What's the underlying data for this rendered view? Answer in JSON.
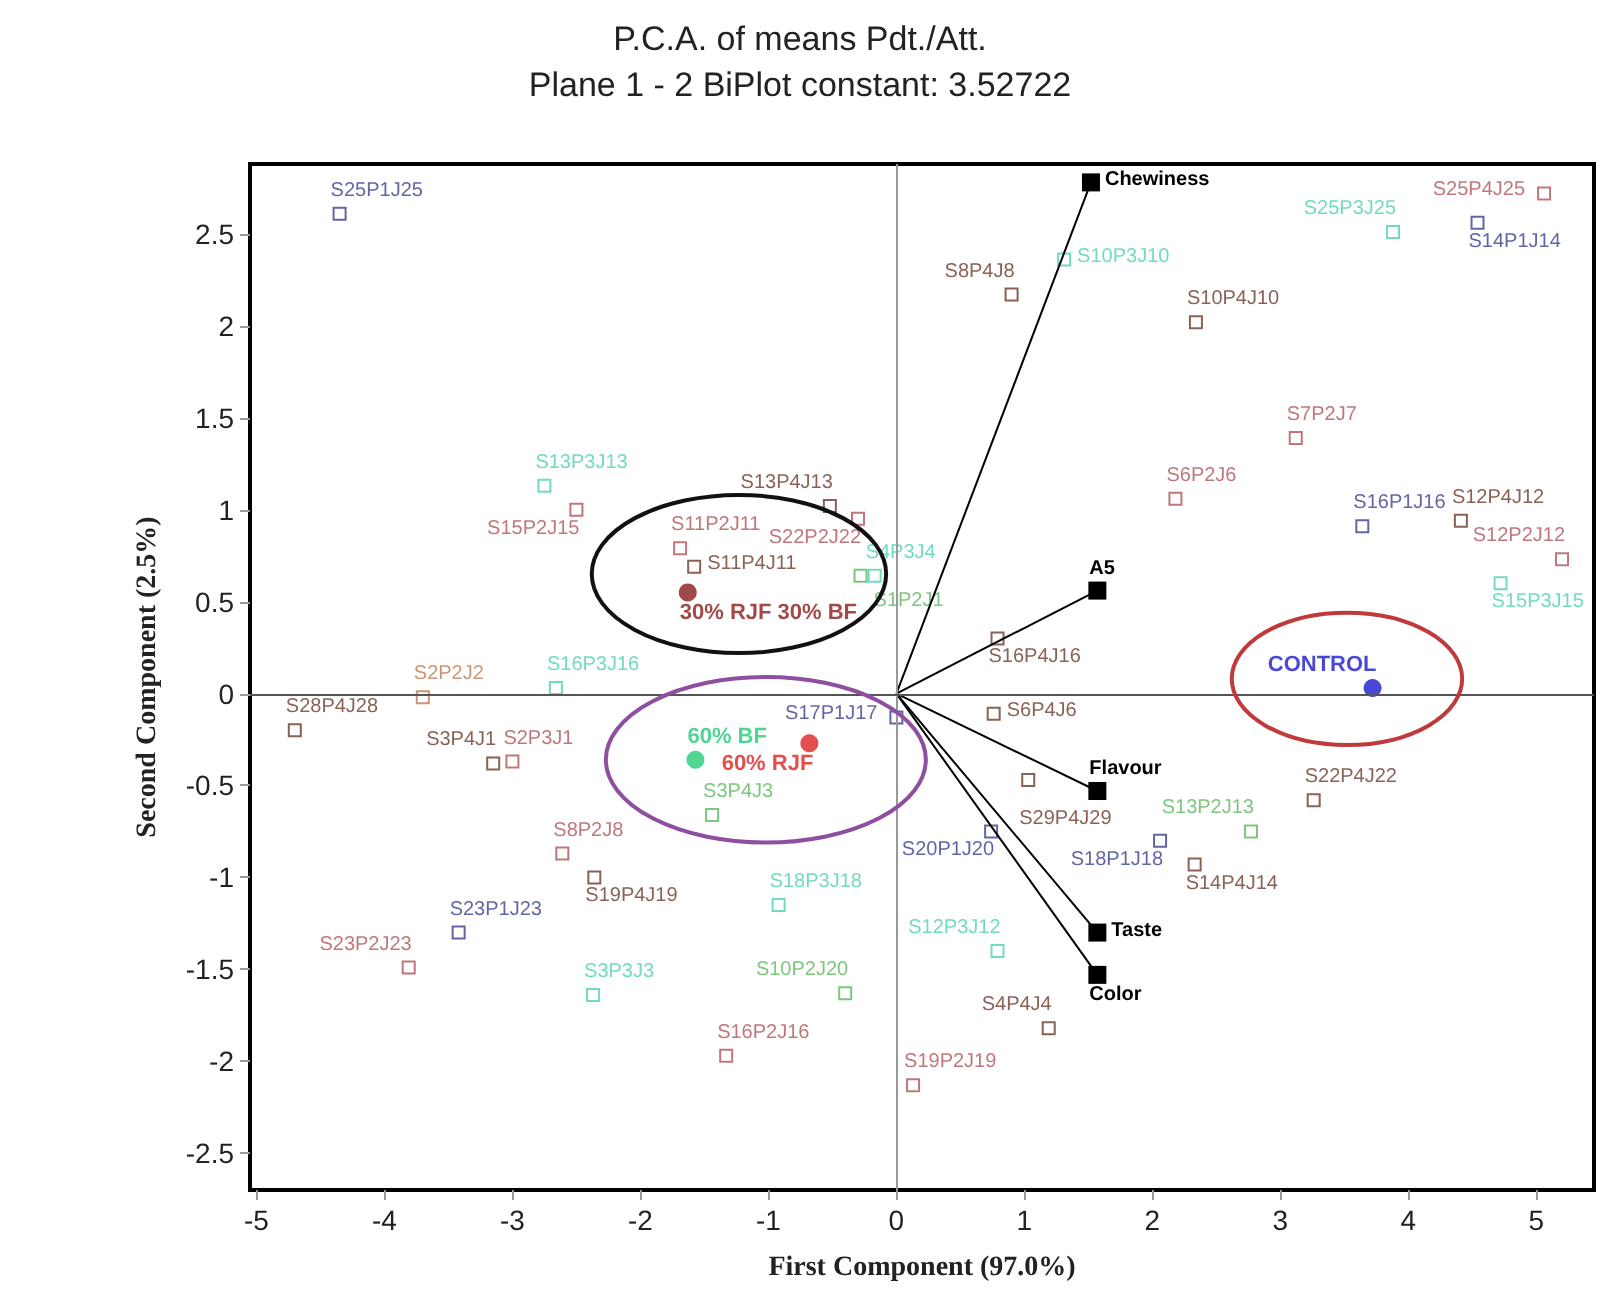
{
  "chart_data": {
    "type": "scatter",
    "title": "P.C.A. of means Pdt./Att.",
    "subtitle": "Plane 1 - 2 BiPlot constant: 3.52722",
    "xlabel": "First Component (97.0%)",
    "ylabel": "Second Component (2.5%)",
    "xlim": [
      -5.05,
      5.45
    ],
    "ylim": [
      -2.7,
      2.88
    ],
    "xticks": [
      -5,
      -4,
      -3,
      -2,
      -1,
      0,
      1,
      2,
      3,
      4,
      5
    ],
    "yticks": [
      -2.5,
      -2,
      -1.5,
      -1,
      -0.5,
      0,
      0.5,
      1,
      1.5,
      2,
      2.5
    ],
    "grid": false,
    "legend": false,
    "ref_lines": [
      {
        "axis": "x",
        "value": 0,
        "color": "#999999"
      },
      {
        "axis": "y",
        "value": 0,
        "color": "#555555"
      }
    ],
    "series": [
      {
        "marker": "square",
        "x": [
          -4.35,
          -2.75,
          -2.5,
          -0.52,
          -0.3,
          -1.69,
          -1.58,
          -0.17,
          -0.28,
          -2.66,
          -3.7,
          -4.7,
          -3.15,
          -3.0,
          -2.61,
          -2.36,
          -3.42,
          -3.81,
          -2.37,
          -0.92,
          -0.4,
          -1.33,
          0.13,
          1.19,
          0.79,
          0.74,
          2.33,
          2.77,
          3.26,
          2.06,
          1.03,
          0.76,
          0.0,
          -1.44,
          0.79,
          1.31,
          0.9,
          2.34,
          3.88,
          4.54,
          5.06,
          3.12,
          2.18,
          3.64,
          4.41,
          5.2,
          4.72
        ],
        "values": [
          2.61,
          1.13,
          1.0,
          1.02,
          0.95,
          0.79,
          0.69,
          0.64,
          0.64,
          0.03,
          -0.02,
          -0.2,
          -0.38,
          -0.37,
          -0.87,
          -1.0,
          -1.3,
          -1.49,
          -1.64,
          -1.15,
          -1.63,
          -1.97,
          -2.13,
          -1.82,
          -1.4,
          -0.75,
          -0.93,
          -0.75,
          -0.58,
          -0.8,
          -0.47,
          -0.11,
          -0.13,
          -0.66,
          0.3,
          2.36,
          2.17,
          2.02,
          2.51,
          2.56,
          2.72,
          1.39,
          1.06,
          0.91,
          0.94,
          0.73,
          0.6
        ],
        "colors": [
          "#3b3f8f",
          "#4fd1b0",
          "#b0555a",
          "#6b3b2a",
          "#b0555a",
          "#b0555a",
          "#6b3b2a",
          "#4fd1b0",
          "#5cb85c",
          "#4fd1b0",
          "#c07a50",
          "#6b3b2a",
          "#6b3b2a",
          "#b0555a",
          "#b0555a",
          "#6b3b2a",
          "#3b3f8f",
          "#b0555a",
          "#4fd1b0",
          "#4fd1b0",
          "#5cb85c",
          "#b0555a",
          "#b0555a",
          "#6b3b2a",
          "#4fd1b0",
          "#3b3f8f",
          "#6b3b2a",
          "#5cb85c",
          "#6b3b2a",
          "#3b3f8f",
          "#6b3b2a",
          "#6b3b2a",
          "#3b3f8f",
          "#5cb85c",
          "#6b3b2a",
          "#4fd1b0",
          "#6b3b2a",
          "#6b3b2a",
          "#4fd1b0",
          "#3b3f8f",
          "#b0555a",
          "#b0555a",
          "#b0555a",
          "#3b3f8f",
          "#6b3b2a",
          "#b0555a",
          "#4fd1b0"
        ],
        "value_labels": [
          "S25P1J25",
          "S13P3J13",
          "S15P2J15",
          "S13P4J13",
          "S22P2J22",
          "S11P2J11",
          "S11P4J11",
          "S4P3J4",
          "S1P2J1",
          "S16P3J16",
          "S2P2J2",
          "S28P4J28",
          "S3P4J1",
          "S2P3J1",
          "S8P2J8",
          "S19P4J19",
          "S23P1J23",
          "S23P2J23",
          "S3P3J3",
          "S18P3J18",
          "S10P2J20",
          "S16P2J16",
          "S19P2J19",
          "S4P4J4",
          "S12P3J12",
          "S20P1J20",
          "S14P4J14",
          "S13P2J13",
          "S22P4J22",
          "S18P1J18",
          "S29P4J29",
          "S6P4J6",
          "S17P1J17",
          "S3P4J3",
          "S16P4J16",
          "S10P3J10",
          "S8P4J8",
          "S10P4J10",
          "S25P3J25",
          "S14P1J14",
          "S25P4J25",
          "S7P2J7",
          "S6P2J6",
          "S16P1J16",
          "S12P4J12",
          "S12P2J12",
          "S15P3J15"
        ]
      },
      {
        "type": "scatter",
        "marker": "circle",
        "name": "30% RJF 30% BF",
        "color": "#8b1a1a",
        "x": [
          -1.63
        ],
        "values": [
          0.55
        ]
      },
      {
        "type": "scatter",
        "marker": "circle",
        "name": "60% BF",
        "color": "#22cc77",
        "x": [
          -1.57
        ],
        "values": [
          -0.36
        ]
      },
      {
        "type": "scatter",
        "marker": "circle",
        "name": "60% RJF",
        "color": "#dd2222",
        "x": [
          -0.68
        ],
        "values": [
          -0.27
        ]
      },
      {
        "type": "scatter",
        "marker": "circle",
        "name": "CONTROL",
        "color": "#1a1acc",
        "x": [
          3.72
        ],
        "values": [
          0.03
        ]
      },
      {
        "type": "line",
        "name": "Chewiness",
        "color": "#000000",
        "marker": "square",
        "x": [
          0,
          1.52
        ],
        "values": [
          0,
          2.78
        ]
      },
      {
        "type": "line",
        "name": "A5",
        "color": "#000000",
        "marker": "square",
        "x": [
          0,
          1.57
        ],
        "values": [
          0,
          0.56
        ]
      },
      {
        "type": "line",
        "name": "Flavour",
        "color": "#000000",
        "marker": "square",
        "x": [
          0,
          1.57
        ],
        "values": [
          0,
          -0.53
        ]
      },
      {
        "type": "line",
        "name": "Taste",
        "color": "#000000",
        "marker": "square",
        "x": [
          0,
          1.57
        ],
        "values": [
          0,
          -1.3
        ]
      },
      {
        "type": "line",
        "name": "Color",
        "color": "#000000",
        "marker": "square",
        "x": [
          0,
          1.57
        ],
        "values": [
          0,
          -1.53
        ]
      }
    ]
  }
}
